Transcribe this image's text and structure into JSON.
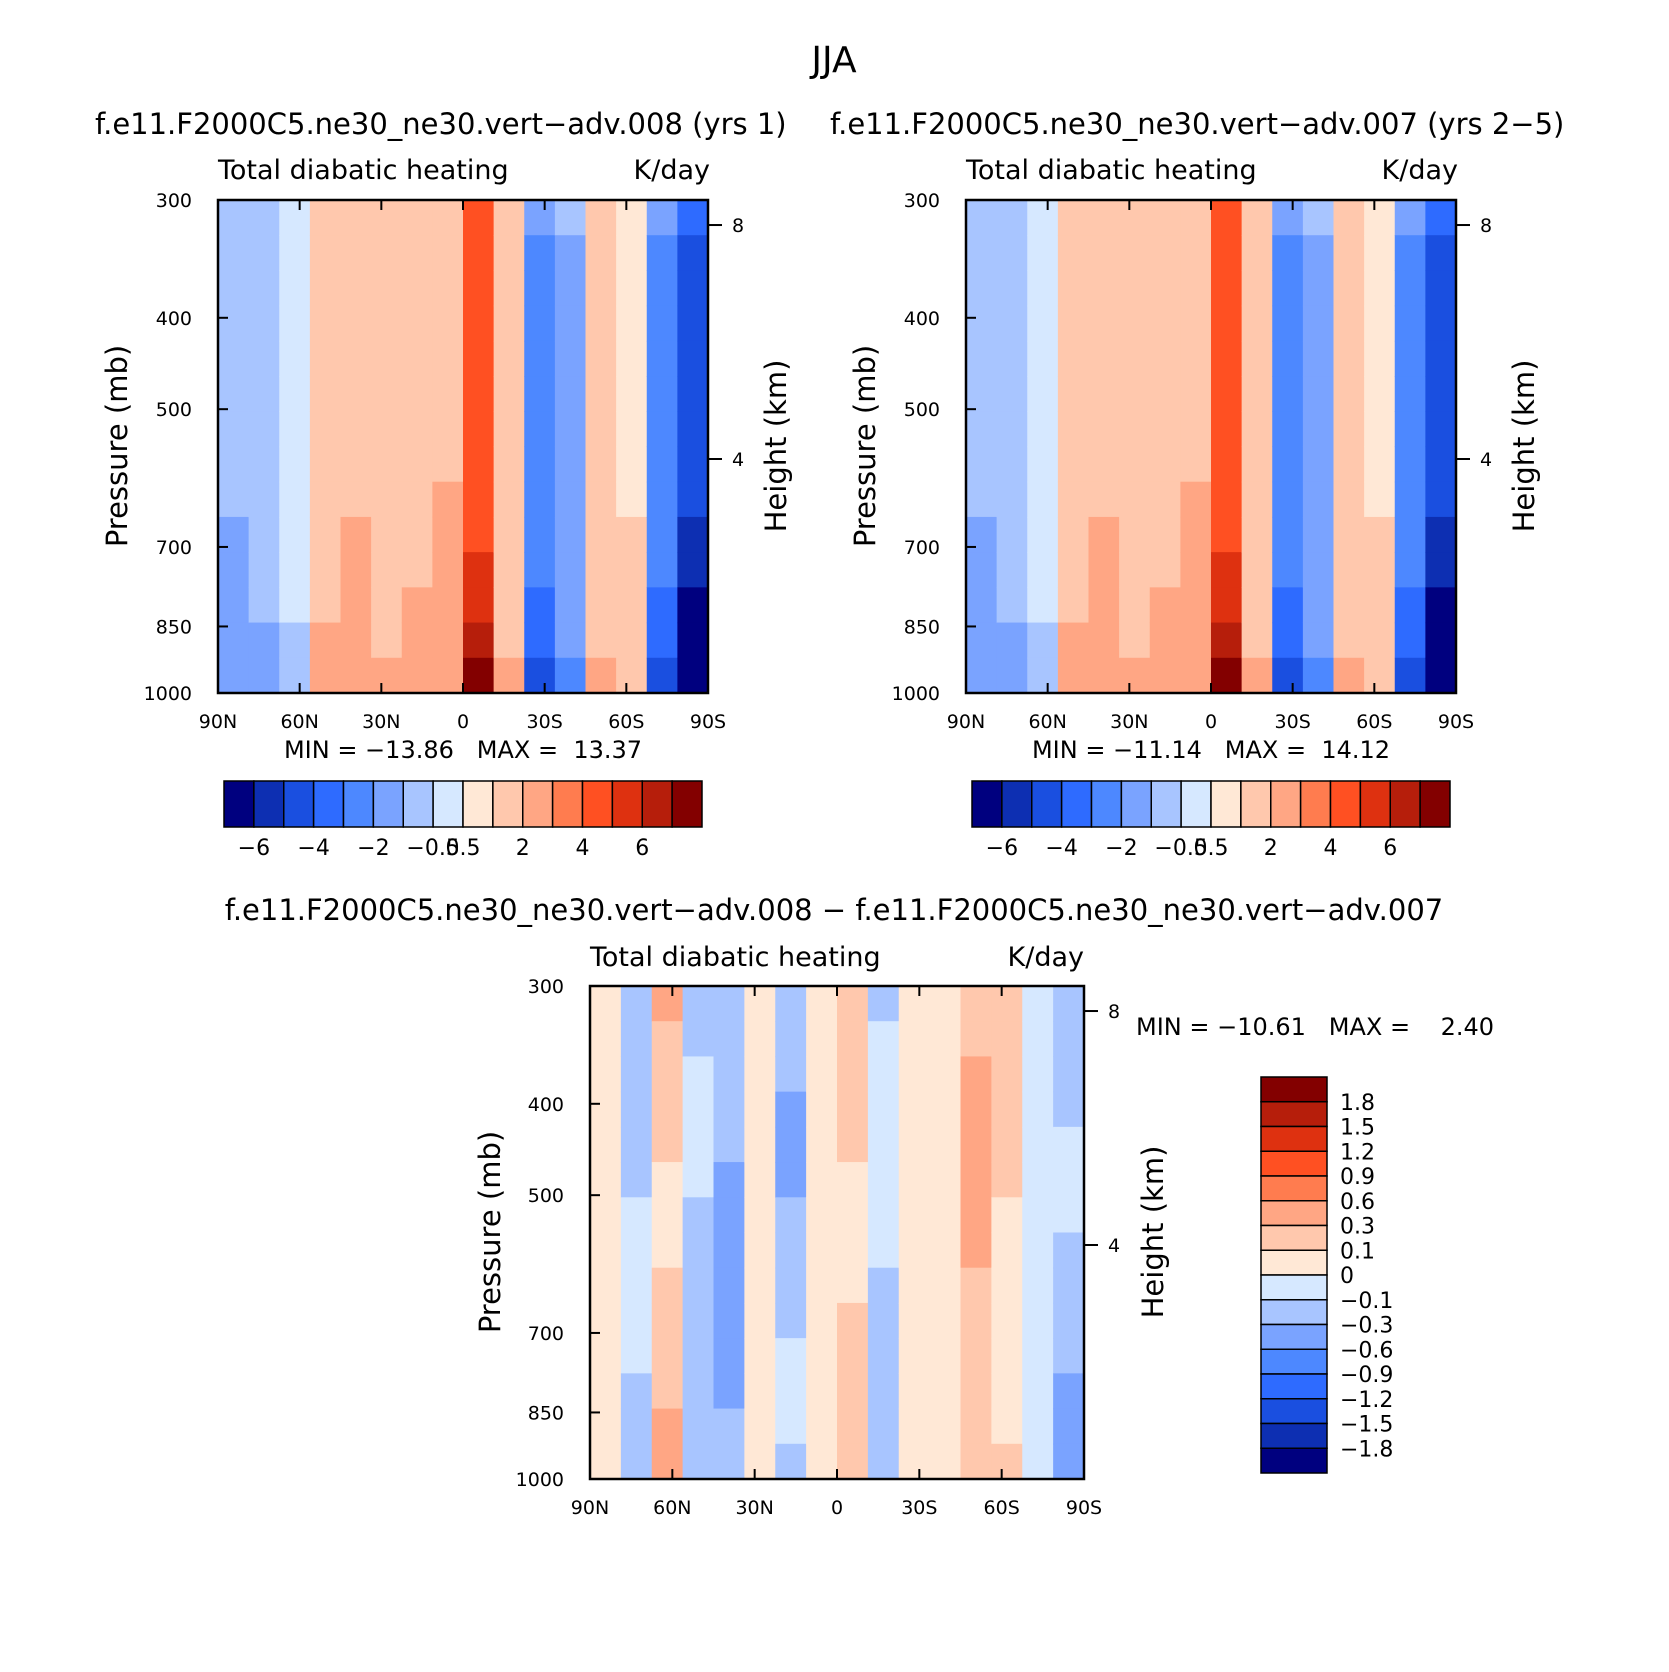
{
  "figure_title": "JJA",
  "colors": {
    "main_scale": [
      "#00007f",
      "#0d2fb2",
      "#1a4fe0",
      "#2e6bff",
      "#4d88ff",
      "#7aa3ff",
      "#a8c5ff",
      "#d6e8ff",
      "#ffe8d6",
      "#ffc8ad",
      "#ffa684",
      "#ff7c4f",
      "#ff5022",
      "#de3110",
      "#b61e0b",
      "#830000"
    ],
    "diff_scale": [
      "#00007f",
      "#0d2fb2",
      "#1a4fe0",
      "#2e6bff",
      "#4d88ff",
      "#7aa3ff",
      "#a8c5ff",
      "#d6e8ff",
      "#ffe8d6",
      "#ffc8ad",
      "#ffa684",
      "#ff7c4f",
      "#ff5022",
      "#de3110",
      "#b61e0b",
      "#830000"
    ]
  },
  "chart_data": [
    {
      "type": "heatmap",
      "title": "f.e11.F2000C5.ne30_ne30.vert−adv.008 (yrs 1)",
      "left_string": "Total diabatic heating",
      "right_string": "K/day",
      "ylabel": "Pressure (mb)",
      "ylabel_right": "Height (km)",
      "x_ticks": [
        "90N",
        "60N",
        "30N",
        "0",
        "30S",
        "60S",
        "90S"
      ],
      "y_ticks": [
        "300",
        "400",
        "500",
        "700",
        "850",
        "1000"
      ],
      "y_right_ticks": [
        "8",
        "4"
      ],
      "stats": "MIN = −13.86   MAX =  13.37",
      "min": -13.86,
      "max": 13.37,
      "colorbar_labels": [
        "−6",
        "−4",
        "−2",
        "−0.5",
        "0.5",
        "2",
        "4",
        "6"
      ],
      "profile": [
        -0.8,
        -0.6,
        -0.3,
        0.6,
        0.8,
        0.5,
        0.7,
        0.9,
        3.0,
        0.5,
        -2.0,
        -1.0,
        0.5,
        0.4,
        -2.0,
        -4.0
      ]
    },
    {
      "type": "heatmap",
      "title": "f.e11.F2000C5.ne30_ne30.vert−adv.007 (yrs 2−5)",
      "left_string": "Total diabatic heating",
      "right_string": "K/day",
      "ylabel": "Pressure (mb)",
      "ylabel_right": "Height (km)",
      "x_ticks": [
        "90N",
        "60N",
        "30N",
        "0",
        "30S",
        "60S",
        "90S"
      ],
      "y_ticks": [
        "300",
        "400",
        "500",
        "700",
        "850",
        "1000"
      ],
      "y_right_ticks": [
        "8",
        "4"
      ],
      "stats": "MIN = −11.14   MAX =  14.12",
      "min": -11.14,
      "max": 14.12,
      "colorbar_labels": [
        "−6",
        "−4",
        "−2",
        "−0.5",
        "0.5",
        "2",
        "4",
        "6"
      ],
      "profile": [
        -0.8,
        -0.6,
        -0.3,
        0.6,
        0.8,
        0.5,
        0.7,
        0.9,
        3.0,
        0.5,
        -2.0,
        -1.0,
        0.5,
        0.4,
        -2.0,
        -4.0
      ]
    },
    {
      "type": "heatmap",
      "title": "f.e11.F2000C5.ne30_ne30.vert−adv.008 − f.e11.F2000C5.ne30_ne30.vert−adv.007",
      "left_string": "Total diabatic heating",
      "right_string": "K/day",
      "ylabel": "Pressure (mb)",
      "ylabel_right": "Height (km)",
      "x_ticks": [
        "90N",
        "60N",
        "30N",
        "0",
        "30S",
        "60S",
        "90S"
      ],
      "y_ticks": [
        "300",
        "400",
        "500",
        "700",
        "850",
        "1000"
      ],
      "y_right_ticks": [
        "8",
        "4"
      ],
      "stats": "MIN = −10.61   MAX =    2.40",
      "min": -10.61,
      "max": 2.4,
      "colorbar_labels": [
        "1.8",
        "1.5",
        "1.2",
        "0.9",
        "0.6",
        "0.3",
        "0.1",
        "0",
        "−0.1",
        "−0.3",
        "−0.6",
        "−0.9",
        "−1.2",
        "−1.5",
        "−1.8"
      ],
      "profile": [
        0.05,
        -0.15,
        0.2,
        -0.15,
        -0.3,
        0.05,
        -0.2,
        0.05,
        0.15,
        -0.1,
        0.05,
        0.05,
        0.25,
        0.1,
        -0.05,
        -0.2
      ]
    }
  ]
}
